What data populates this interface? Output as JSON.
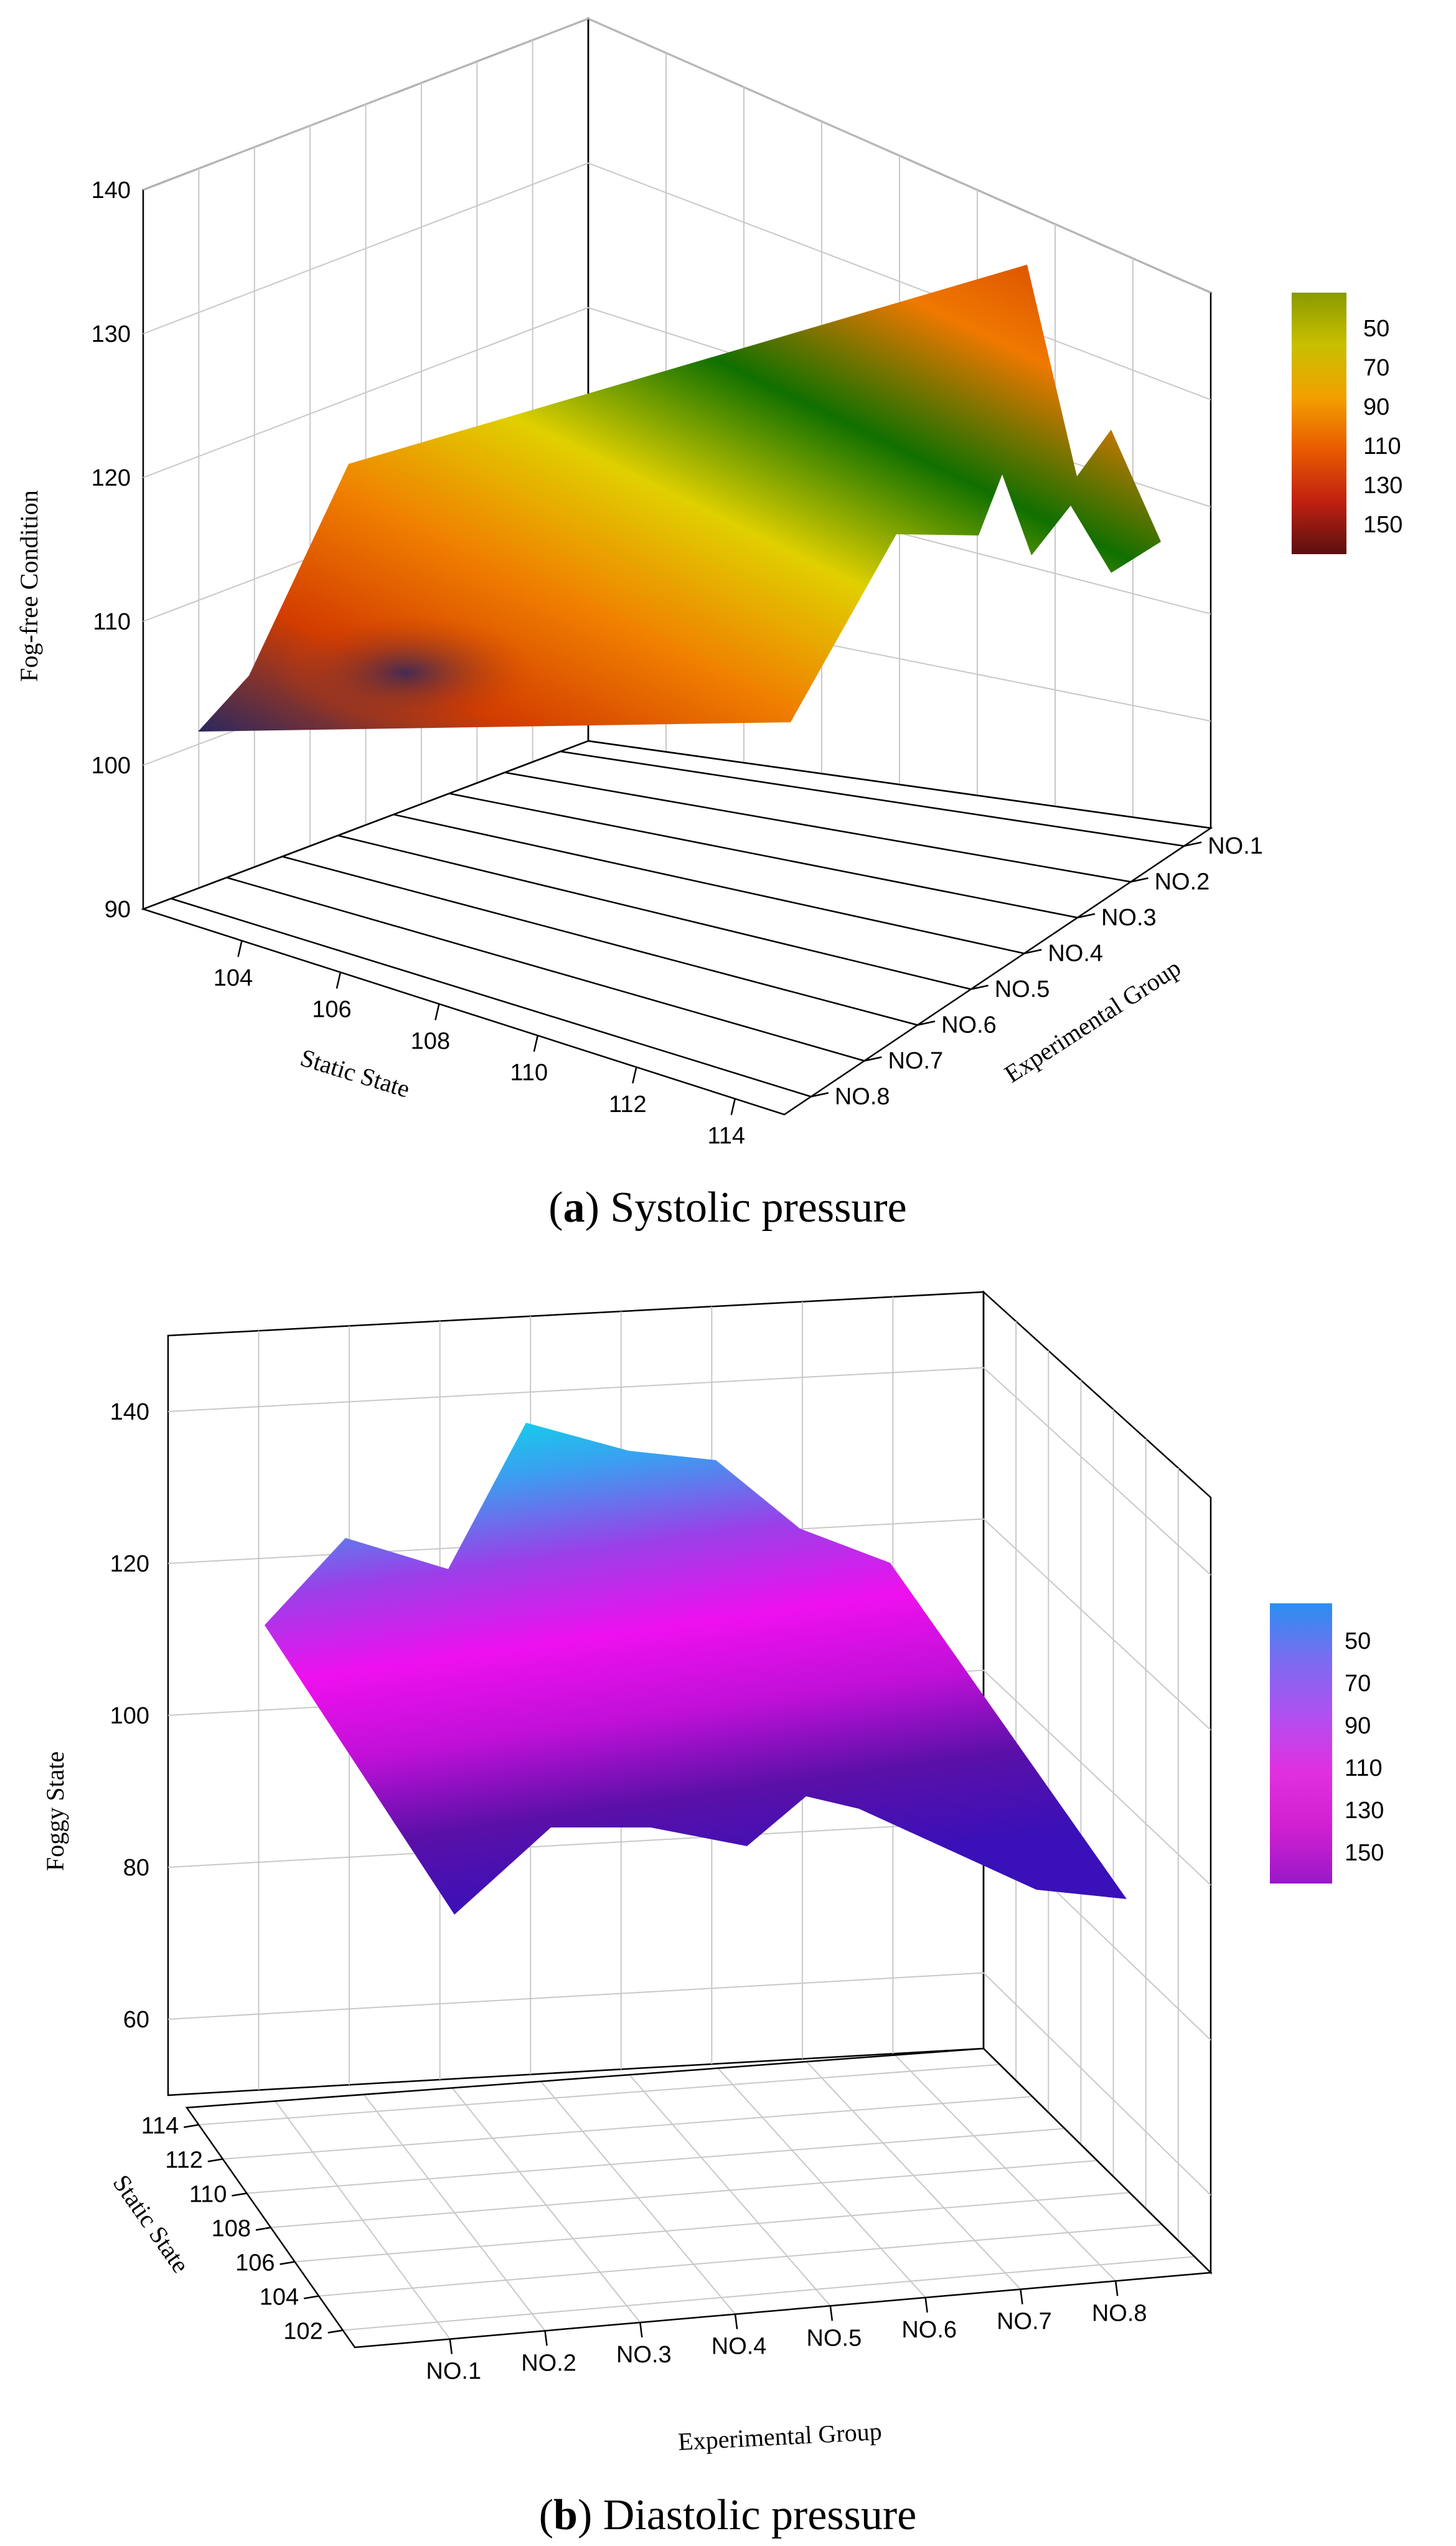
{
  "figure": {
    "panel_a": {
      "caption_letter": "a",
      "caption_text": "Systolic pressure"
    },
    "panel_b": {
      "caption_letter": "b",
      "caption_text": "Diastolic pressure"
    }
  },
  "chart_data": [
    {
      "type": "surface3d",
      "panel": "a",
      "zlabel": "Fog-free Condition",
      "xlabel": "Static State",
      "ylabel": "Experimental Group",
      "z_ticks": [
        "90",
        "100",
        "110",
        "120",
        "130",
        "140"
      ],
      "zlim": [
        90,
        140
      ],
      "x_ticks": [
        "104",
        "106",
        "108",
        "110",
        "112",
        "114"
      ],
      "xlim": [
        102,
        115
      ],
      "y_ticks": [
        "NO.1",
        "NO.2",
        "NO.3",
        "NO.4",
        "NO.5",
        "NO.6",
        "NO.7",
        "NO.8"
      ],
      "series": [
        {
          "name": "NO.1",
          "static": 103,
          "value": 103
        },
        {
          "name": "NO.2",
          "static": 104,
          "value": 105
        },
        {
          "name": "NO.3",
          "static": 106,
          "value": 122
        },
        {
          "name": "NO.4",
          "static": 107,
          "value": 112
        },
        {
          "name": "NO.5",
          "static": 109,
          "value": 129
        },
        {
          "name": "NO.6",
          "static": 111,
          "value": 133
        },
        {
          "name": "NO.7",
          "static": 113,
          "value": 122
        },
        {
          "name": "NO.8",
          "static": 114,
          "value": 120
        }
      ],
      "colorbar": {
        "ticks": [
          "50",
          "70",
          "90",
          "110",
          "130",
          "150"
        ],
        "colors": [
          "#8a9a00",
          "#c8c000",
          "#f2a000",
          "#e85a00",
          "#c02010",
          "#5a1010"
        ]
      },
      "surface_colors": [
        "#2a2860",
        "#d23c00",
        "#f08000",
        "#e0d000",
        "#107000",
        "#f07800",
        "#d04000"
      ]
    },
    {
      "type": "surface3d",
      "panel": "b",
      "zlabel": "Foggy State",
      "xlabel": "Experimental Group",
      "ylabel": "Static State",
      "z_ticks": [
        "60",
        "80",
        "100",
        "120",
        "140"
      ],
      "zlim": [
        50,
        150
      ],
      "x_ticks": [
        "NO.1",
        "NO.2",
        "NO.3",
        "NO.4",
        "NO.5",
        "NO.6",
        "NO.7",
        "NO.8"
      ],
      "y_ticks": [
        "102",
        "104",
        "106",
        "108",
        "110",
        "112",
        "114"
      ],
      "ylim": [
        101,
        115
      ],
      "series": [
        {
          "name": "NO.1",
          "back": 116,
          "front": 78
        },
        {
          "name": "NO.2",
          "back": 138,
          "front": 86
        },
        {
          "name": "NO.3",
          "back": 139,
          "front": 88
        },
        {
          "name": "NO.4",
          "back": 137,
          "front": 86
        },
        {
          "name": "NO.5",
          "back": 124,
          "front": 90
        },
        {
          "name": "NO.6",
          "back": 115,
          "front": 84
        },
        {
          "name": "NO.7",
          "back": 100,
          "front": 82
        },
        {
          "name": "NO.8",
          "back": 85,
          "front": 83
        }
      ],
      "colorbar": {
        "ticks": [
          "50",
          "70",
          "90",
          "110",
          "130",
          "150"
        ],
        "colors": [
          "#2a8ff0",
          "#7a6cf0",
          "#b050f0",
          "#e030e0",
          "#d020d0",
          "#9a18c8"
        ]
      },
      "surface_colors": [
        "#00e8e8",
        "#3aa0f0",
        "#9a40e8",
        "#ee10ee",
        "#c010d8",
        "#5a10a8",
        "#3a10b8"
      ]
    }
  ]
}
